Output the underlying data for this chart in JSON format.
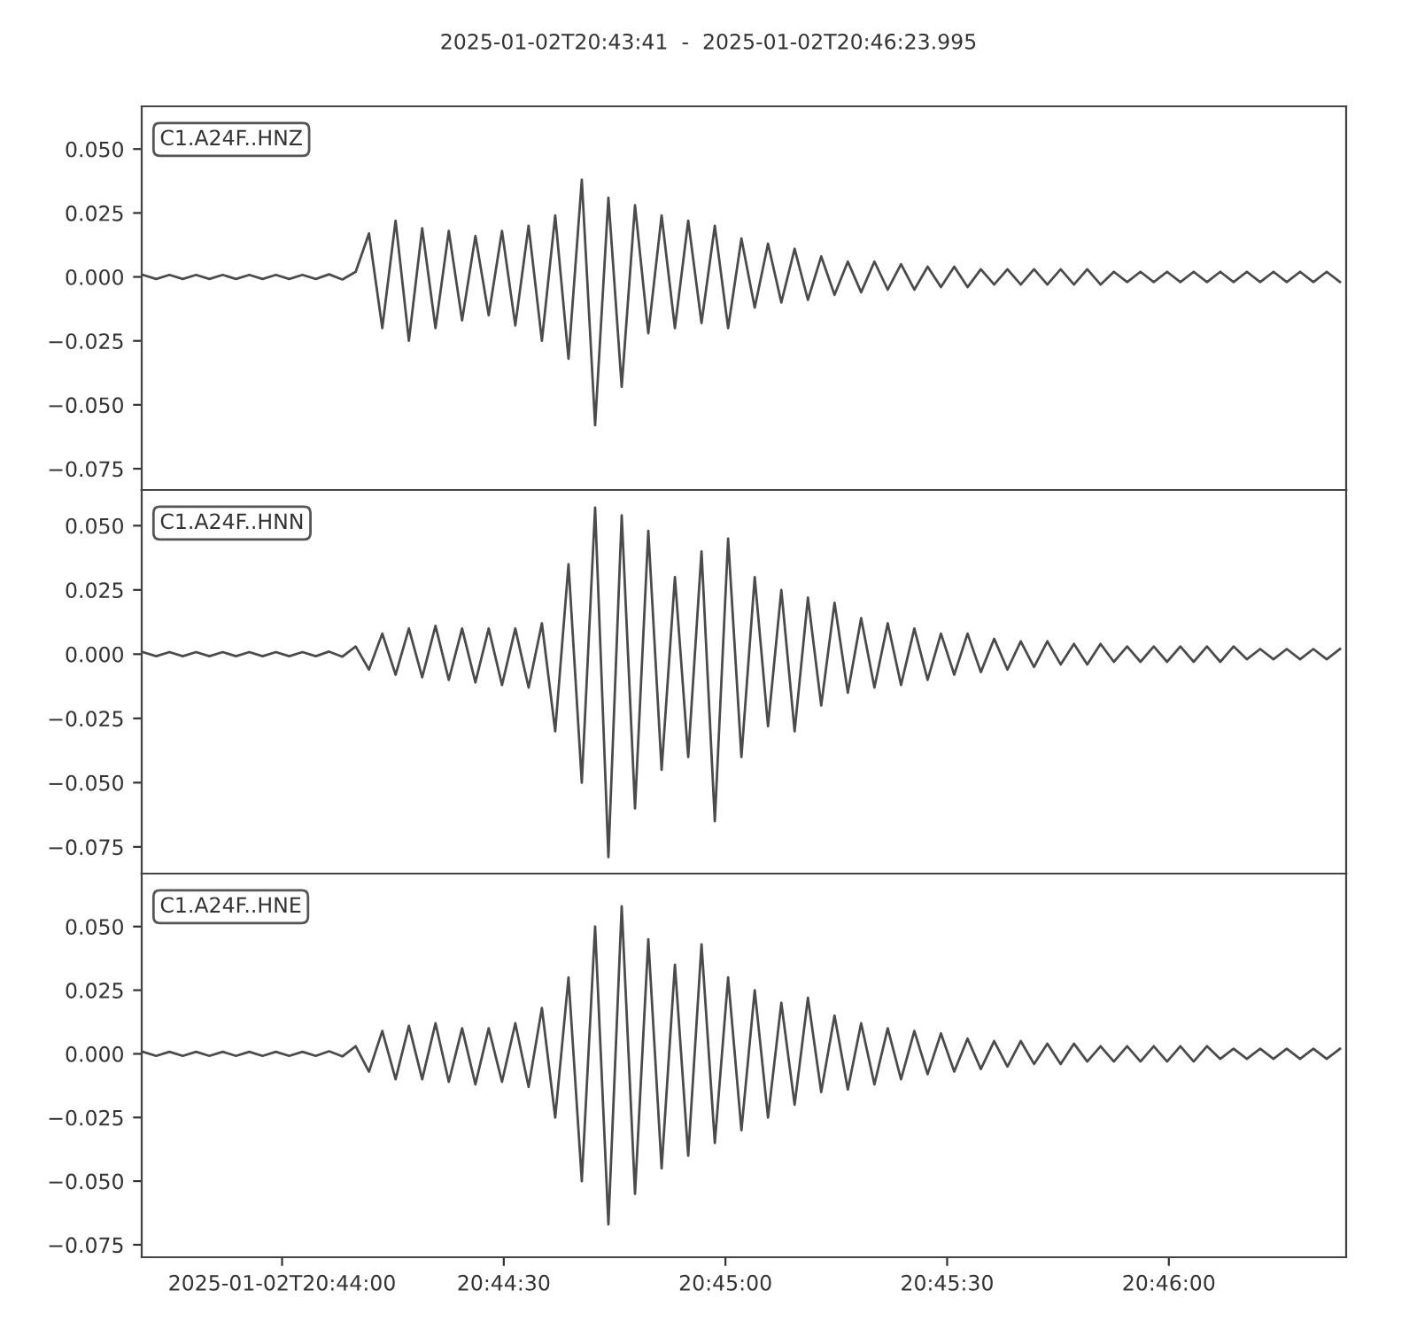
{
  "chart_data": [
    {
      "type": "line",
      "title": "2025-01-02T20:43:41  -  2025-01-02T20:46:23.995",
      "x": [
        20.7281,
        20.7286,
        20.7291,
        20.7296,
        20.7301,
        20.7306,
        20.7311,
        20.7316,
        20.7321,
        20.7326,
        20.7331,
        20.7336,
        20.7341,
        20.7346,
        20.7351,
        20.7356,
        20.7361,
        20.7366,
        20.7371,
        20.7376,
        20.7381,
        20.7386,
        20.7391,
        20.7396,
        20.7401,
        20.7406,
        20.7411,
        20.7416,
        20.7421,
        20.7426,
        20.7431,
        20.7436,
        20.7441,
        20.7446,
        20.7451,
        20.7456,
        20.7461,
        20.7466,
        20.7471,
        20.7476,
        20.7481,
        20.7486,
        20.7491,
        20.7496,
        20.7501,
        20.7506,
        20.7511,
        20.7516,
        20.7521,
        20.7526,
        20.7531,
        20.7536,
        20.7541,
        20.7546,
        20.7551,
        20.7556,
        20.7561,
        20.7566,
        20.7571,
        20.7576,
        20.7581,
        20.7586,
        20.7591,
        20.7596,
        20.7601,
        20.7606,
        20.7611,
        20.7616,
        20.7621,
        20.7626,
        20.7631,
        20.7636,
        20.7641,
        20.7646,
        20.7651,
        20.7656,
        20.7661,
        20.7666,
        20.7671,
        20.7676,
        20.7681,
        20.7686,
        20.7691,
        20.7696,
        20.7701,
        20.7706,
        20.7711,
        20.7716,
        20.7721,
        20.7726,
        20.7731
      ],
      "series": [
        {
          "name": "C1.A24F..HNZ",
          "color": "#4b4b4b",
          "values": [
            0.0008,
            -0.0008,
            0.0008,
            -0.0008,
            0.0008,
            -0.0008,
            0.0008,
            -0.0008,
            0.0008,
            -0.0008,
            0.0008,
            -0.0008,
            0.0008,
            -0.0008,
            0.001,
            -0.001,
            0.002,
            0.017,
            -0.02,
            0.022,
            -0.025,
            0.019,
            -0.02,
            0.018,
            -0.017,
            0.016,
            -0.015,
            0.018,
            -0.019,
            0.02,
            -0.025,
            0.024,
            -0.032,
            0.038,
            -0.058,
            0.031,
            -0.043,
            0.028,
            -0.022,
            0.024,
            -0.02,
            0.022,
            -0.018,
            0.02,
            -0.02,
            0.015,
            -0.012,
            0.013,
            -0.01,
            0.011,
            -0.009,
            0.008,
            -0.007,
            0.006,
            -0.006,
            0.006,
            -0.005,
            0.005,
            -0.005,
            0.004,
            -0.004,
            0.004,
            -0.004,
            0.003,
            -0.003,
            0.003,
            -0.003,
            0.003,
            -0.003,
            0.003,
            -0.003,
            0.003,
            -0.003,
            0.002,
            -0.002,
            0.002,
            -0.002,
            0.002,
            -0.002,
            0.002,
            -0.002,
            0.002,
            -0.002,
            0.002,
            -0.002,
            0.002,
            -0.002,
            0.002,
            -0.002,
            0.002,
            -0.002
          ]
        }
      ],
      "xlim": [
        20.728056,
        20.773332
      ],
      "ylim": [
        -0.0833,
        0.0667
      ],
      "yticks": [
        {
          "value": 0.05,
          "label": "0.050"
        },
        {
          "value": 0.025,
          "label": "0.025"
        },
        {
          "value": 0,
          "label": "0.000"
        },
        {
          "value": -0.025,
          "label": "−0.025"
        },
        {
          "value": -0.05,
          "label": "−0.050"
        },
        {
          "value": -0.075,
          "label": "−0.075"
        }
      ],
      "tick_labels": "y",
      "grid": false
    },
    {
      "type": "line",
      "x": [
        20.7281,
        20.7286,
        20.7291,
        20.7296,
        20.7301,
        20.7306,
        20.7311,
        20.7316,
        20.7321,
        20.7326,
        20.7331,
        20.7336,
        20.7341,
        20.7346,
        20.7351,
        20.7356,
        20.7361,
        20.7366,
        20.7371,
        20.7376,
        20.7381,
        20.7386,
        20.7391,
        20.7396,
        20.7401,
        20.7406,
        20.7411,
        20.7416,
        20.7421,
        20.7426,
        20.7431,
        20.7436,
        20.7441,
        20.7446,
        20.7451,
        20.7456,
        20.7461,
        20.7466,
        20.7471,
        20.7476,
        20.7481,
        20.7486,
        20.7491,
        20.7496,
        20.7501,
        20.7506,
        20.7511,
        20.7516,
        20.7521,
        20.7526,
        20.7531,
        20.7536,
        20.7541,
        20.7546,
        20.7551,
        20.7556,
        20.7561,
        20.7566,
        20.7571,
        20.7576,
        20.7581,
        20.7586,
        20.7591,
        20.7596,
        20.7601,
        20.7606,
        20.7611,
        20.7616,
        20.7621,
        20.7626,
        20.7631,
        20.7636,
        20.7641,
        20.7646,
        20.7651,
        20.7656,
        20.7661,
        20.7666,
        20.7671,
        20.7676,
        20.7681,
        20.7686,
        20.7691,
        20.7696,
        20.7701,
        20.7706,
        20.7711,
        20.7716,
        20.7721,
        20.7726,
        20.7731
      ],
      "series": [
        {
          "name": "C1.A24F..HNN",
          "color": "#4b4b4b",
          "values": [
            0.0008,
            -0.0008,
            0.0008,
            -0.0008,
            0.0008,
            -0.0008,
            0.0008,
            -0.0008,
            0.0008,
            -0.0008,
            0.0008,
            -0.0008,
            0.0008,
            -0.0008,
            0.001,
            -0.001,
            0.003,
            -0.006,
            0.008,
            -0.008,
            0.01,
            -0.009,
            0.011,
            -0.01,
            0.01,
            -0.011,
            0.01,
            -0.012,
            0.01,
            -0.013,
            0.012,
            -0.03,
            0.035,
            -0.05,
            0.057,
            -0.079,
            0.054,
            -0.06,
            0.048,
            -0.045,
            0.03,
            -0.04,
            0.04,
            -0.065,
            0.045,
            -0.04,
            0.03,
            -0.028,
            0.025,
            -0.03,
            0.022,
            -0.02,
            0.02,
            -0.015,
            0.014,
            -0.013,
            0.012,
            -0.012,
            0.01,
            -0.01,
            0.008,
            -0.008,
            0.008,
            -0.007,
            0.006,
            -0.006,
            0.005,
            -0.005,
            0.005,
            -0.004,
            0.004,
            -0.004,
            0.004,
            -0.003,
            0.003,
            -0.003,
            0.003,
            -0.003,
            0.003,
            -0.003,
            0.003,
            -0.003,
            0.003,
            -0.002,
            0.002,
            -0.002,
            0.002,
            -0.002,
            0.002,
            -0.002,
            0.002
          ]
        }
      ],
      "xlim": [
        20.728056,
        20.773332
      ],
      "ylim": [
        -0.0854,
        0.0639
      ],
      "yticks": [
        {
          "value": 0.05,
          "label": "0.050"
        },
        {
          "value": 0.025,
          "label": "0.025"
        },
        {
          "value": 0,
          "label": "0.000"
        },
        {
          "value": -0.025,
          "label": "−0.025"
        },
        {
          "value": -0.05,
          "label": "−0.050"
        },
        {
          "value": -0.075,
          "label": "−0.075"
        }
      ],
      "tick_labels": "y",
      "grid": false
    },
    {
      "type": "line",
      "x": [
        20.7281,
        20.7286,
        20.7291,
        20.7296,
        20.7301,
        20.7306,
        20.7311,
        20.7316,
        20.7321,
        20.7326,
        20.7331,
        20.7336,
        20.7341,
        20.7346,
        20.7351,
        20.7356,
        20.7361,
        20.7366,
        20.7371,
        20.7376,
        20.7381,
        20.7386,
        20.7391,
        20.7396,
        20.7401,
        20.7406,
        20.7411,
        20.7416,
        20.7421,
        20.7426,
        20.7431,
        20.7436,
        20.7441,
        20.7446,
        20.7451,
        20.7456,
        20.7461,
        20.7466,
        20.7471,
        20.7476,
        20.7481,
        20.7486,
        20.7491,
        20.7496,
        20.7501,
        20.7506,
        20.7511,
        20.7516,
        20.7521,
        20.7526,
        20.7531,
        20.7536,
        20.7541,
        20.7546,
        20.7551,
        20.7556,
        20.7561,
        20.7566,
        20.7571,
        20.7576,
        20.7581,
        20.7586,
        20.7591,
        20.7596,
        20.7601,
        20.7606,
        20.7611,
        20.7616,
        20.7621,
        20.7626,
        20.7631,
        20.7636,
        20.7641,
        20.7646,
        20.7651,
        20.7656,
        20.7661,
        20.7666,
        20.7671,
        20.7676,
        20.7681,
        20.7686,
        20.7691,
        20.7696,
        20.7701,
        20.7706,
        20.7711,
        20.7716,
        20.7721,
        20.7726,
        20.7731
      ],
      "series": [
        {
          "name": "C1.A24F..HNE",
          "color": "#4b4b4b",
          "values": [
            0.0008,
            -0.0008,
            0.0008,
            -0.0008,
            0.0008,
            -0.0008,
            0.0008,
            -0.0008,
            0.0008,
            -0.0008,
            0.0008,
            -0.0008,
            0.0008,
            -0.0008,
            0.001,
            -0.001,
            0.003,
            -0.007,
            0.009,
            -0.01,
            0.011,
            -0.01,
            0.012,
            -0.011,
            0.01,
            -0.012,
            0.01,
            -0.011,
            0.012,
            -0.013,
            0.018,
            -0.025,
            0.03,
            -0.05,
            0.05,
            -0.067,
            0.058,
            -0.055,
            0.045,
            -0.045,
            0.035,
            -0.04,
            0.043,
            -0.035,
            0.03,
            -0.03,
            0.025,
            -0.025,
            0.02,
            -0.02,
            0.022,
            -0.015,
            0.015,
            -0.014,
            0.012,
            -0.012,
            0.01,
            -0.01,
            0.009,
            -0.008,
            0.008,
            -0.007,
            0.006,
            -0.006,
            0.005,
            -0.005,
            0.005,
            -0.004,
            0.004,
            -0.004,
            0.004,
            -0.003,
            0.003,
            -0.003,
            0.003,
            -0.003,
            0.003,
            -0.003,
            0.003,
            -0.003,
            0.003,
            -0.002,
            0.002,
            -0.002,
            0.002,
            -0.002,
            0.002,
            -0.002,
            0.002,
            -0.002,
            0.002
          ]
        }
      ],
      "xlim": [
        20.728056,
        20.773332
      ],
      "xticks": [
        {
          "value": 20.733333,
          "label": "2025-01-02T20:44:00"
        },
        {
          "value": 20.741667,
          "label": "20:44:30"
        },
        {
          "value": 20.75,
          "label": "20:45:00"
        },
        {
          "value": 20.758333,
          "label": "20:45:30"
        },
        {
          "value": 20.766667,
          "label": "20:46:00"
        }
      ],
      "ylim": [
        -0.0799,
        0.0708
      ],
      "yticks": [
        {
          "value": 0.05,
          "label": "0.050"
        },
        {
          "value": 0.025,
          "label": "0.025"
        },
        {
          "value": 0,
          "label": "0.000"
        },
        {
          "value": -0.025,
          "label": "−0.025"
        },
        {
          "value": -0.05,
          "label": "−0.050"
        },
        {
          "value": -0.075,
          "label": "−0.075"
        }
      ],
      "grid": false
    }
  ]
}
